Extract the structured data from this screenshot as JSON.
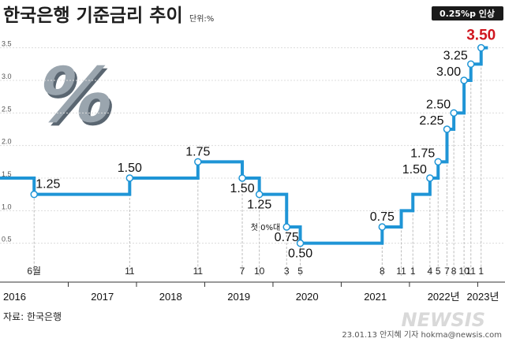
{
  "header": {
    "title": "한국은행 기준금리 추이",
    "unit": "단위:%",
    "badge": "0.25%p 인상"
  },
  "source": "자료: 한국은행",
  "credit": "23.01.13 안지혜 기자 hokma@newsis.com",
  "brand": "NEWSIS",
  "icons": [
    "percent-icon"
  ],
  "colors": {
    "line": "#1f95d6",
    "highlight": "#d0161f",
    "badge_bg": "#1a1a1a"
  },
  "chart_data": {
    "type": "line",
    "step": true,
    "xlim": [
      2016.0,
      2023.4
    ],
    "ylim": [
      0,
      3.75
    ],
    "yticks": [
      0.5,
      1.0,
      1.5,
      2.0,
      2.5,
      3.0,
      3.5
    ],
    "ytick_labels": [
      "0.5",
      "1.0",
      "1.5",
      "2.0",
      "2.5",
      "3.0",
      "3.5"
    ],
    "year_labels": [
      {
        "x": 2016.0,
        "label": "2016"
      },
      {
        "x": 2017.0,
        "label": "2017"
      },
      {
        "x": 2018.0,
        "label": "2018"
      },
      {
        "x": 2019.0,
        "label": "2019"
      },
      {
        "x": 2020.0,
        "label": "2020"
      },
      {
        "x": 2021.0,
        "label": "2021"
      },
      {
        "x": 2022.0,
        "label": "2022년"
      },
      {
        "x": 2023.0,
        "label": "2023년"
      }
    ],
    "steps": [
      {
        "x": 2016.5,
        "value": 1.25,
        "label": "1.25",
        "month": "6월"
      },
      {
        "x": 2017.9,
        "value": 1.5,
        "label": "1.50",
        "month": "11"
      },
      {
        "x": 2018.9,
        "value": 1.75,
        "label": "1.75",
        "month": "11"
      },
      {
        "x": 2019.55,
        "value": 1.5,
        "label": "1.50",
        "month": "7"
      },
      {
        "x": 2019.8,
        "value": 1.25,
        "label": "1.25",
        "month": "10"
      },
      {
        "x": 2020.2,
        "value": 0.75,
        "label": "0.75",
        "month": "3",
        "annotation": "첫 0%대"
      },
      {
        "x": 2020.4,
        "value": 0.5,
        "label": "0.50",
        "month": "5"
      },
      {
        "x": 2021.6,
        "value": 0.75,
        "label": "0.75",
        "month": "8"
      },
      {
        "x": 2021.88,
        "value": 1.0,
        "label": "",
        "month": "11"
      },
      {
        "x": 2022.05,
        "value": 1.25,
        "label": "",
        "month": "1"
      },
      {
        "x": 2022.3,
        "value": 1.5,
        "label": "1.50",
        "month": "4"
      },
      {
        "x": 2022.42,
        "value": 1.75,
        "label": "1.75",
        "month": "5"
      },
      {
        "x": 2022.55,
        "value": 2.25,
        "label": "2.25",
        "month": "7"
      },
      {
        "x": 2022.65,
        "value": 2.5,
        "label": "2.50",
        "month": "8"
      },
      {
        "x": 2022.8,
        "value": 3.0,
        "label": "3.00",
        "month": "10"
      },
      {
        "x": 2022.9,
        "value": 3.25,
        "label": "3.25",
        "month": "11"
      },
      {
        "x": 2023.05,
        "value": 3.5,
        "label": "3.50",
        "month": "1",
        "highlight": true
      }
    ],
    "start_value": 1.5,
    "end_x": 2023.15
  }
}
